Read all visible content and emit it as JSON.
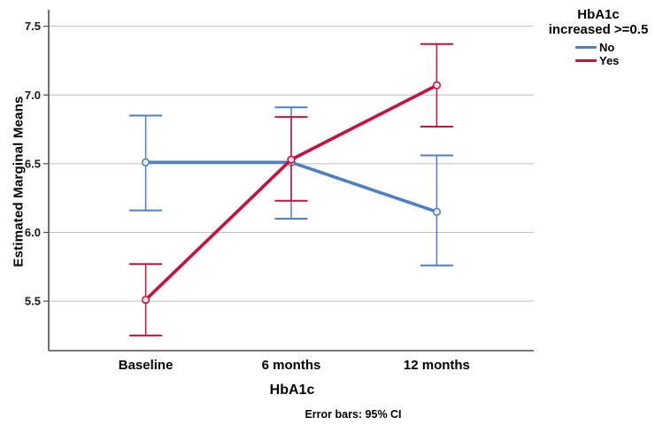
{
  "chart_data": {
    "type": "line",
    "ylabel": "Estimated Marginal Means",
    "xlabel": "HbA1c",
    "caption": "Error bars: 95% CI",
    "categories": [
      "Baseline",
      "6 months",
      "12 months"
    ],
    "yticks": [
      5.5,
      6.0,
      6.5,
      7.0,
      7.5
    ],
    "ytick_labels": [
      "5.5",
      "6.0",
      "6.5",
      "7.0",
      "7.5"
    ],
    "ylim": [
      5.14,
      7.62
    ],
    "grid": "horizontal",
    "error_bars": "95% CI",
    "legend": {
      "position": "top-right-outside",
      "title_lines": [
        "HbA1c",
        "increased >=0.5"
      ]
    },
    "series": [
      {
        "name": "No",
        "color": "#4C7FC7",
        "means": [
          6.51,
          6.51,
          6.15
        ],
        "ci_low": [
          6.16,
          6.1,
          5.76
        ],
        "ci_high": [
          6.85,
          6.91,
          6.56
        ]
      },
      {
        "name": "Yes",
        "color": "#C8123C",
        "means": [
          5.51,
          6.53,
          7.07
        ],
        "ci_low": [
          5.25,
          6.23,
          6.77
        ],
        "ci_high": [
          5.77,
          6.84,
          7.37
        ]
      }
    ]
  },
  "colors": {
    "axis": "#4D4D4D",
    "grid": "#BFBFBF",
    "tick_text": "#1A1A1A",
    "marker_fill": "#FFFFFF",
    "background": "#FFFFFF"
  }
}
